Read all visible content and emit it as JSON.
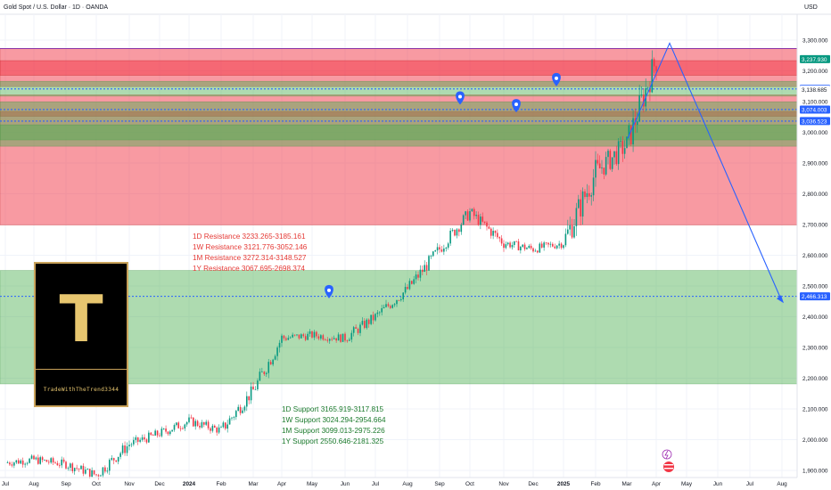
{
  "header": {
    "symbol": "Gold Spot / U.S. Dollar · 1D · OANDA",
    "currency": "USD"
  },
  "branding": {
    "logo_letter": "T",
    "logo_name": "TradeWithTheTrend3344"
  },
  "resistance_notes": [
    "1D Resistance 3233.265-3185.161",
    "1W Resistance 3121.776-3052.146",
    "1M Resistance 3272.314-3148.527",
    "1Y Resistance 3067.695-2698.374"
  ],
  "support_notes": [
    "1D Support 3165.919-3117.815",
    "1W Support 3024.294-2954.664",
    "1M Support 3099.013-2975.226",
    "1Y Support 2550.646-2181.325"
  ],
  "colors": {
    "resistance_zone": "#f23645",
    "support_zone": "#4caf50",
    "up_candle": "#089981",
    "down_candle": "#f23645",
    "projection": "#2962ff",
    "price_label": "#2962ff",
    "last_price_label": "#089981"
  },
  "chart_data": {
    "type": "candlestick",
    "symbol": "XAUUSD",
    "timeframe": "1D",
    "x_axis_labels": [
      "Jul",
      "Aug",
      "Sep",
      "Oct",
      "Nov",
      "Dec",
      "2024",
      "Feb",
      "Mar",
      "Apr",
      "May",
      "Jun",
      "Jul",
      "Aug",
      "Sep",
      "Oct",
      "Nov",
      "Dec",
      "2025",
      "Feb",
      "Mar",
      "Apr",
      "May",
      "Jun",
      "Jul",
      "Aug"
    ],
    "y_axis_ticks": [
      "3,300.000",
      "3,200.000",
      "3,100.000",
      "3,000.000",
      "2,900.000",
      "2,800.000",
      "2,700.000",
      "2,600.000",
      "2,500.000",
      "2,400.000",
      "2,300.000",
      "2,200.000",
      "2,100.000",
      "2,000.000",
      "1,900.000"
    ],
    "y_axis_tick_values": [
      3300,
      3200,
      3100,
      3000,
      2900,
      2800,
      2700,
      2600,
      2500,
      2400,
      2300,
      2200,
      2100,
      2000,
      1900
    ],
    "ylim": [
      1880,
      3330
    ],
    "price_labels": [
      {
        "text": "3,237.930",
        "value": 3237.93,
        "kind": "last"
      },
      {
        "text": "3,141.215",
        "value": 3141.215,
        "kind": "level"
      },
      {
        "text": "3,138.685",
        "value": 3138.685,
        "kind": "plain"
      },
      {
        "text": "3,074.003",
        "value": 3074.003,
        "kind": "level"
      },
      {
        "text": "3,036.523",
        "value": 3036.523,
        "kind": "level"
      },
      {
        "text": "2,466.313",
        "value": 2466.313,
        "kind": "level"
      }
    ],
    "zones": [
      {
        "name": "1Y Resistance",
        "from": 2698.374,
        "to": 3067.695
      },
      {
        "name": "1M Resistance",
        "from": 3148.527,
        "to": 3272.314
      },
      {
        "name": "1D Resistance",
        "from": 3185.161,
        "to": 3233.265
      },
      {
        "name": "1W Resistance",
        "from": 3052.146,
        "to": 3121.776
      },
      {
        "name": "1Y Support",
        "from": 2181.325,
        "to": 2550.646
      },
      {
        "name": "1M Support",
        "from": 2975.226,
        "to": 3099.013
      },
      {
        "name": "1W Support",
        "from": 2954.664,
        "to": 3024.294
      },
      {
        "name": "1D Support",
        "from": 3117.815,
        "to": 3165.919
      }
    ],
    "dotted_levels": [
      3141.215,
      3074.003,
      3036.523,
      2466.313
    ],
    "price_path": [
      [
        "Jul",
        1925
      ],
      [
        "Aug",
        1935
      ],
      [
        "Sep",
        1920
      ],
      [
        "Oct",
        1885
      ],
      [
        "Nov",
        1985
      ],
      [
        "Dec",
        2020
      ],
      [
        "2024",
        2060
      ],
      [
        "Feb",
        2030
      ],
      [
        "Mar",
        2160
      ],
      [
        "Apr",
        2330
      ],
      [
        "May",
        2340
      ],
      [
        "Jun",
        2330
      ],
      [
        "Jul",
        2400
      ],
      [
        "Aug",
        2490
      ],
      [
        "Sep",
        2620
      ],
      [
        "Oct",
        2740
      ],
      [
        "Nov",
        2640
      ],
      [
        "Dec",
        2620
      ],
      [
        "2025",
        2640
      ],
      [
        "Feb",
        2870
      ],
      [
        "Mar",
        2960
      ],
      [
        "Apr",
        3237.93
      ]
    ],
    "projection": {
      "from": [
        "Apr",
        3290
      ],
      "to": [
        "Aug",
        2450
      ]
    },
    "markers": [
      {
        "x": "May",
        "y": 2480
      },
      {
        "x": "Sep",
        "y": 3110
      },
      {
        "x": "Nov",
        "y": 3085
      },
      {
        "x": "Dec",
        "y": 3170
      }
    ]
  }
}
